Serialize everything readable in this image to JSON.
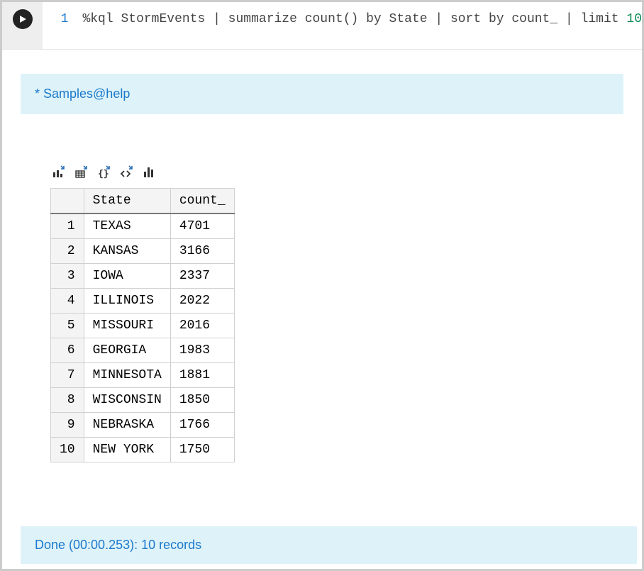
{
  "cell": {
    "line_number": "1",
    "code_prefix": "%kql StormEvents | summarize count() by State | sort by count_ | limit ",
    "code_limit": "10"
  },
  "context_banner": "* Samples@help",
  "toolbar": {
    "icons": [
      "export-chart-icon",
      "export-grid-icon",
      "export-json-icon",
      "export-code-icon",
      "chart-icon"
    ]
  },
  "table": {
    "columns": [
      "State",
      "count_"
    ],
    "rows": [
      {
        "idx": "1",
        "State": "TEXAS",
        "count_": "4701"
      },
      {
        "idx": "2",
        "State": "KANSAS",
        "count_": "3166"
      },
      {
        "idx": "3",
        "State": "IOWA",
        "count_": "2337"
      },
      {
        "idx": "4",
        "State": "ILLINOIS",
        "count_": "2022"
      },
      {
        "idx": "5",
        "State": "MISSOURI",
        "count_": "2016"
      },
      {
        "idx": "6",
        "State": "GEORGIA",
        "count_": "1983"
      },
      {
        "idx": "7",
        "State": "MINNESOTA",
        "count_": "1881"
      },
      {
        "idx": "8",
        "State": "WISCONSIN",
        "count_": "1850"
      },
      {
        "idx": "9",
        "State": "NEBRASKA",
        "count_": "1766"
      },
      {
        "idx": "10",
        "State": "NEW YORK",
        "count_": "1750"
      }
    ]
  },
  "status": "Done (00:00.253): 10 records",
  "colors": {
    "banner_bg": "#def2f9",
    "banner_fg": "#1b7acb",
    "line_number": "#1b7acb",
    "code_number": "#0a8a55",
    "header_bg": "#f4f4f4",
    "border": "#d0d0d0"
  }
}
